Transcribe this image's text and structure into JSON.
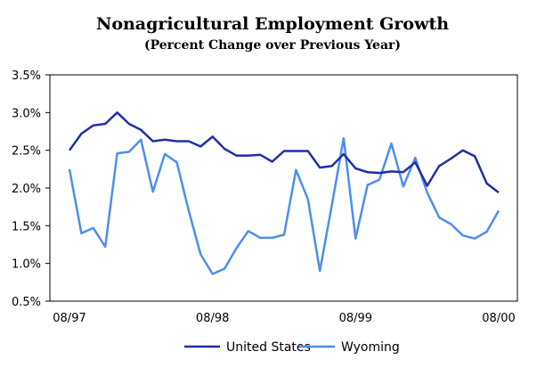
{
  "chart_data": {
    "type": "line",
    "title": "Nonagricultural Employment Growth",
    "subtitle": "(Percent Change over Previous Year)",
    "xlabel": "",
    "ylabel": "",
    "x_tick_labels": [
      "08/97",
      "08/98",
      "08/99",
      "08/00"
    ],
    "x_months": [
      "08/97",
      "09/97",
      "10/97",
      "11/97",
      "12/97",
      "01/98",
      "02/98",
      "03/98",
      "04/98",
      "05/98",
      "06/98",
      "07/98",
      "08/98",
      "09/98",
      "10/98",
      "11/98",
      "12/98",
      "01/99",
      "02/99",
      "03/99",
      "04/99",
      "05/99",
      "06/99",
      "07/99",
      "08/99",
      "09/99",
      "10/99",
      "11/99",
      "12/99",
      "01/00",
      "02/00",
      "03/00",
      "04/00",
      "05/00",
      "06/00",
      "07/00",
      "08/00"
    ],
    "y_tick_labels": [
      "0.5%",
      "1.0%",
      "1.5%",
      "2.0%",
      "2.5%",
      "3.0%",
      "3.5%"
    ],
    "ylim": [
      0.5,
      3.5
    ],
    "grid": "none",
    "legend_position": "bottom",
    "series": [
      {
        "name": "United States",
        "color": "#1f2fa8",
        "values": [
          2.5,
          2.72,
          2.83,
          2.85,
          3.0,
          2.85,
          2.77,
          2.62,
          2.64,
          2.62,
          2.62,
          2.55,
          2.68,
          2.52,
          2.43,
          2.43,
          2.44,
          2.35,
          2.49,
          2.49,
          2.49,
          2.27,
          2.29,
          2.45,
          2.26,
          2.21,
          2.2,
          2.22,
          2.21,
          2.34,
          2.03,
          2.29,
          2.39,
          2.5,
          2.42,
          2.06,
          1.94
        ]
      },
      {
        "name": "Wyoming",
        "color": "#4d8ef0",
        "values": [
          2.25,
          1.4,
          1.47,
          1.22,
          2.46,
          2.48,
          2.64,
          1.95,
          2.45,
          2.34,
          1.7,
          1.12,
          0.86,
          0.93,
          1.2,
          1.43,
          1.34,
          1.34,
          1.38,
          2.24,
          1.85,
          0.9,
          1.77,
          2.66,
          1.33,
          2.04,
          2.11,
          2.59,
          2.02,
          2.4,
          1.94,
          1.61,
          1.52,
          1.37,
          1.33,
          1.42,
          1.7
        ]
      }
    ]
  }
}
